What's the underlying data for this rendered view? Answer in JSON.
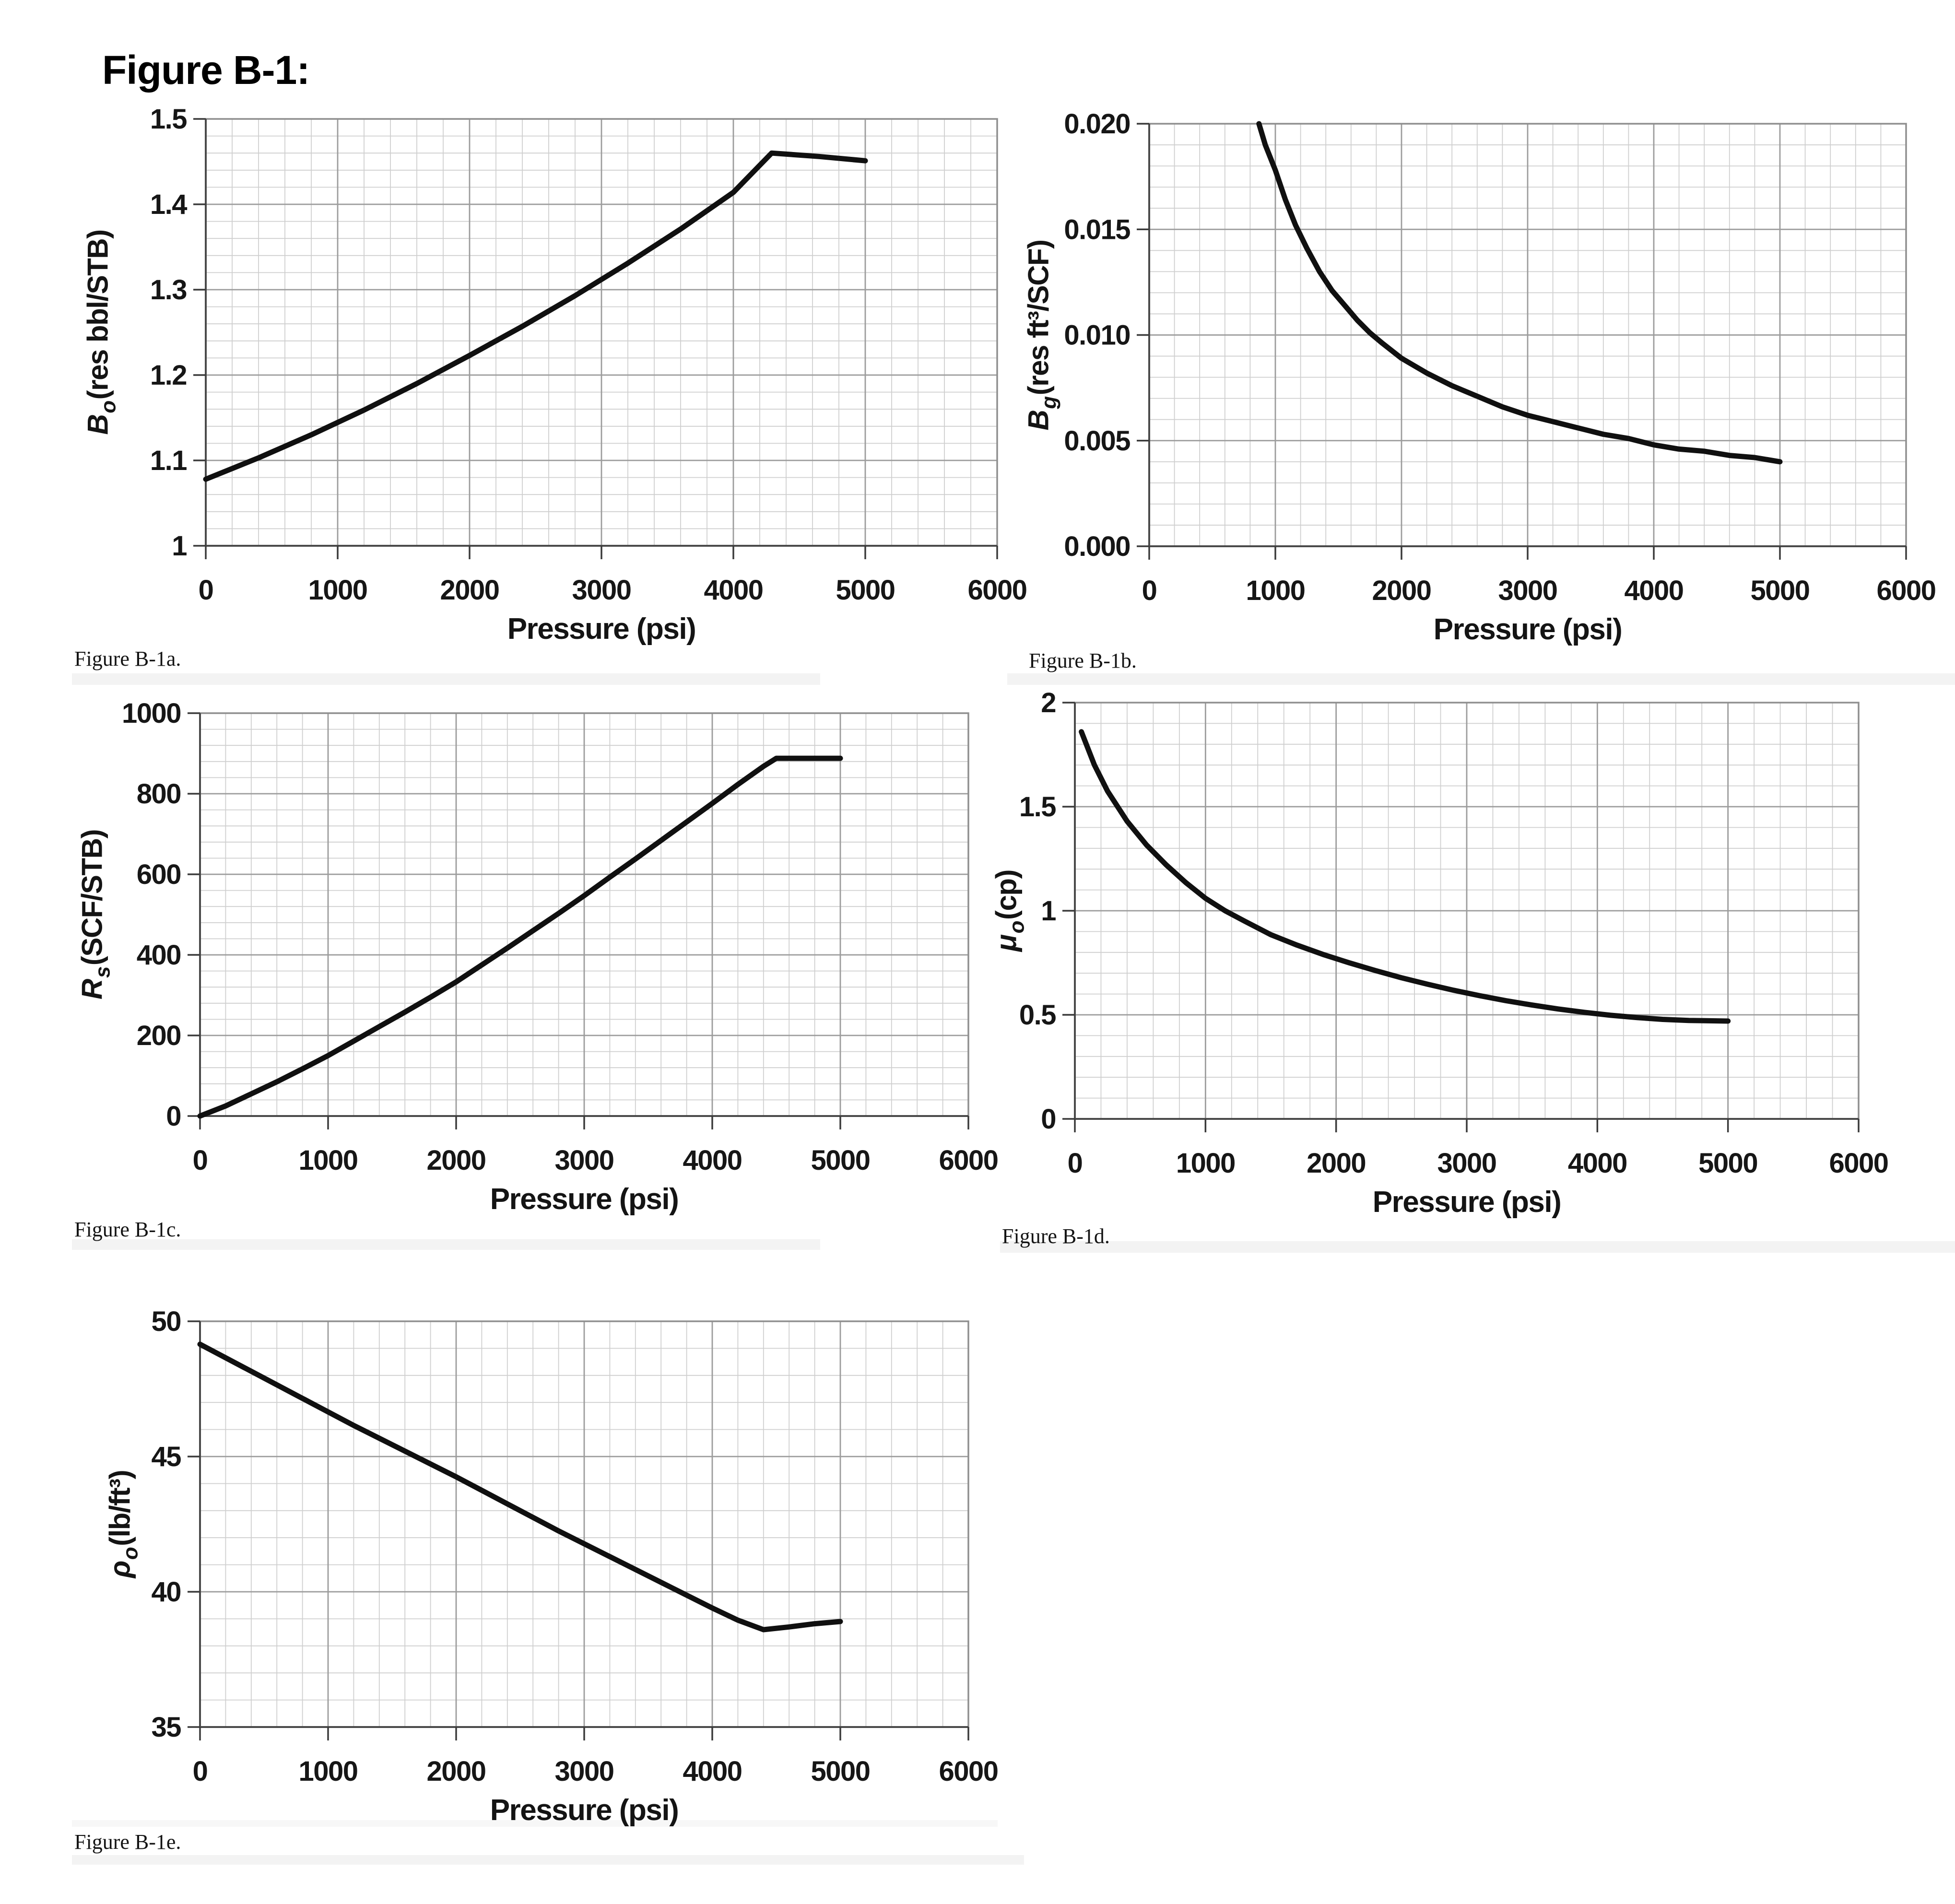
{
  "title": "Figure B-1:",
  "colors": {
    "curve": "#101010",
    "grid_minor": "#cfcfcf",
    "grid_major": "#9c9c9c",
    "plot_border": "#8f8f8f",
    "axis": "#4a4a4a",
    "tick": "#3a3a3a"
  },
  "chart_data": [
    {
      "id": "B-1a",
      "type": "line",
      "caption": "Figure B-1a.",
      "xlabel": "Pressure (psi)",
      "ylabel": {
        "sym": "B",
        "sub": "o",
        "rest": "(res bbl/STB)"
      },
      "xlim": [
        0,
        6000
      ],
      "ylim": [
        1,
        1.5
      ],
      "x_minor": 200,
      "y_minor": 0.02,
      "grid": true,
      "legend": "none",
      "xticks": [
        {
          "v": 0,
          "t": "0"
        },
        {
          "v": 1000,
          "t": "1000"
        },
        {
          "v": 2000,
          "t": "2000"
        },
        {
          "v": 3000,
          "t": "3000"
        },
        {
          "v": 4000,
          "t": "4000"
        },
        {
          "v": 5000,
          "t": "5000"
        },
        {
          "v": 6000,
          "t": "6000"
        }
      ],
      "yticks": [
        {
          "v": 1,
          "t": "1"
        },
        {
          "v": 1.1,
          "t": "1.1"
        },
        {
          "v": 1.2,
          "t": "1.2"
        },
        {
          "v": 1.3,
          "t": "1.3"
        },
        {
          "v": 1.4,
          "t": "1.4"
        },
        {
          "v": 1.5,
          "t": "1.5"
        }
      ],
      "series": [
        {
          "name": "Bo",
          "points": [
            [
              0,
              1.078
            ],
            [
              400,
              1.103
            ],
            [
              800,
              1.13
            ],
            [
              1200,
              1.159
            ],
            [
              1600,
              1.19
            ],
            [
              2000,
              1.223
            ],
            [
              2400,
              1.257
            ],
            [
              2800,
              1.293
            ],
            [
              3200,
              1.331
            ],
            [
              3600,
              1.371
            ],
            [
              4000,
              1.414
            ],
            [
              4290,
              1.46
            ],
            [
              4650,
              1.456
            ],
            [
              5000,
              1.451
            ]
          ]
        }
      ]
    },
    {
      "id": "B-1b",
      "type": "line",
      "caption": "Figure B-1b.",
      "xlabel": "Pressure (psi)",
      "ylabel": {
        "sym": "B",
        "sub": "g",
        "rest": "(res ft³/SCF)"
      },
      "xlim": [
        0,
        6000
      ],
      "ylim": [
        0,
        0.02
      ],
      "x_minor": 200,
      "y_minor": 0.001,
      "grid": true,
      "legend": "none",
      "xticks": [
        {
          "v": 0,
          "t": "0"
        },
        {
          "v": 1000,
          "t": "1000"
        },
        {
          "v": 2000,
          "t": "2000"
        },
        {
          "v": 3000,
          "t": "3000"
        },
        {
          "v": 4000,
          "t": "4000"
        },
        {
          "v": 5000,
          "t": "5000"
        },
        {
          "v": 6000,
          "t": "6000"
        }
      ],
      "yticks": [
        {
          "v": 0,
          "t": "0.000"
        },
        {
          "v": 0.005,
          "t": "0.005"
        },
        {
          "v": 0.01,
          "t": "0.010"
        },
        {
          "v": 0.015,
          "t": "0.015"
        },
        {
          "v": 0.02,
          "t": "0.020"
        }
      ],
      "series": [
        {
          "name": "Bg",
          "points": [
            [
              870,
              0.02
            ],
            [
              920,
              0.019
            ],
            [
              1000,
              0.0178
            ],
            [
              1080,
              0.0164
            ],
            [
              1160,
              0.0152
            ],
            [
              1250,
              0.0141
            ],
            [
              1350,
              0.013
            ],
            [
              1450,
              0.0121
            ],
            [
              1550,
              0.0114
            ],
            [
              1650,
              0.0107
            ],
            [
              1750,
              0.0101
            ],
            [
              1850,
              0.0096
            ],
            [
              2000,
              0.0089
            ],
            [
              2200,
              0.0082
            ],
            [
              2400,
              0.0076
            ],
            [
              2600,
              0.0071
            ],
            [
              2800,
              0.0066
            ],
            [
              3000,
              0.0062
            ],
            [
              3200,
              0.0059
            ],
            [
              3400,
              0.0056
            ],
            [
              3600,
              0.0053
            ],
            [
              3800,
              0.0051
            ],
            [
              4000,
              0.0048
            ],
            [
              4200,
              0.0046
            ],
            [
              4400,
              0.0045
            ],
            [
              4600,
              0.0043
            ],
            [
              4800,
              0.0042
            ],
            [
              5000,
              0.004
            ]
          ]
        }
      ]
    },
    {
      "id": "B-1c",
      "type": "line",
      "caption": "Figure B-1c.",
      "xlabel": "Pressure (psi)",
      "ylabel": {
        "sym": "R",
        "sub": "s",
        "rest": "(SCF/STB)"
      },
      "xlim": [
        0,
        6000
      ],
      "ylim": [
        0,
        1000
      ],
      "x_minor": 200,
      "y_minor": 40,
      "grid": true,
      "legend": "none",
      "xticks": [
        {
          "v": 0,
          "t": "0"
        },
        {
          "v": 1000,
          "t": "1000"
        },
        {
          "v": 2000,
          "t": "2000"
        },
        {
          "v": 3000,
          "t": "3000"
        },
        {
          "v": 4000,
          "t": "4000"
        },
        {
          "v": 5000,
          "t": "5000"
        },
        {
          "v": 6000,
          "t": "6000"
        }
      ],
      "yticks": [
        {
          "v": 0,
          "t": "0"
        },
        {
          "v": 200,
          "t": "200"
        },
        {
          "v": 400,
          "t": "400"
        },
        {
          "v": 600,
          "t": "600"
        },
        {
          "v": 800,
          "t": "800"
        },
        {
          "v": 1000,
          "t": "1000"
        }
      ],
      "series": [
        {
          "name": "Rs",
          "points": [
            [
              0,
              0
            ],
            [
              200,
              25
            ],
            [
              400,
              55
            ],
            [
              600,
              85
            ],
            [
              800,
              117
            ],
            [
              1000,
              150
            ],
            [
              1200,
              186
            ],
            [
              1400,
              222
            ],
            [
              1600,
              258
            ],
            [
              1800,
              295
            ],
            [
              2000,
              333
            ],
            [
              2200,
              375
            ],
            [
              2400,
              417
            ],
            [
              2600,
              460
            ],
            [
              2800,
              503
            ],
            [
              3000,
              547
            ],
            [
              3200,
              593
            ],
            [
              3400,
              638
            ],
            [
              3600,
              684
            ],
            [
              3800,
              730
            ],
            [
              4000,
              776
            ],
            [
              4200,
              823
            ],
            [
              4400,
              868
            ],
            [
              4500,
              888
            ],
            [
              5000,
              888
            ]
          ]
        }
      ]
    },
    {
      "id": "B-1d",
      "type": "line",
      "caption": "Figure B-1d.",
      "xlabel": "Pressure (psi)",
      "ylabel": {
        "sym": "μ",
        "sub": "o",
        "rest": "(cp)"
      },
      "xlim": [
        0,
        6000
      ],
      "ylim": [
        0,
        2
      ],
      "x_minor": 200,
      "y_minor": 0.1,
      "grid": true,
      "legend": "none",
      "xticks": [
        {
          "v": 0,
          "t": "0"
        },
        {
          "v": 1000,
          "t": "1000"
        },
        {
          "v": 2000,
          "t": "2000"
        },
        {
          "v": 3000,
          "t": "3000"
        },
        {
          "v": 4000,
          "t": "4000"
        },
        {
          "v": 5000,
          "t": "5000"
        },
        {
          "v": 6000,
          "t": "6000"
        }
      ],
      "yticks": [
        {
          "v": 0,
          "t": "0"
        },
        {
          "v": 0.5,
          "t": "0.5"
        },
        {
          "v": 1,
          "t": "1"
        },
        {
          "v": 1.5,
          "t": "1.5"
        },
        {
          "v": 2,
          "t": "2"
        }
      ],
      "series": [
        {
          "name": "muo",
          "points": [
            [
              50,
              1.86
            ],
            [
              150,
              1.7
            ],
            [
              250,
              1.575
            ],
            [
              400,
              1.43
            ],
            [
              550,
              1.315
            ],
            [
              700,
              1.22
            ],
            [
              850,
              1.135
            ],
            [
              1000,
              1.06
            ],
            [
              1150,
              1.0
            ],
            [
              1300,
              0.95
            ],
            [
              1500,
              0.885
            ],
            [
              1700,
              0.835
            ],
            [
              1900,
              0.79
            ],
            [
              2100,
              0.75
            ],
            [
              2300,
              0.713
            ],
            [
              2500,
              0.678
            ],
            [
              2700,
              0.647
            ],
            [
              2900,
              0.618
            ],
            [
              3100,
              0.592
            ],
            [
              3300,
              0.568
            ],
            [
              3500,
              0.547
            ],
            [
              3700,
              0.528
            ],
            [
              3900,
              0.512
            ],
            [
              4100,
              0.498
            ],
            [
              4300,
              0.487
            ],
            [
              4500,
              0.478
            ],
            [
              4700,
              0.473
            ],
            [
              5000,
              0.47
            ]
          ]
        }
      ]
    },
    {
      "id": "B-1e",
      "type": "line",
      "caption": "Figure B-1e.",
      "xlabel": "Pressure (psi)",
      "ylabel": {
        "sym": "ρ",
        "sub": "o",
        "rest": "(lb/ft³)"
      },
      "xlim": [
        0,
        6000
      ],
      "ylim": [
        35,
        50
      ],
      "x_minor": 200,
      "y_minor": 1,
      "grid": true,
      "legend": "none",
      "xticks": [
        {
          "v": 0,
          "t": "0"
        },
        {
          "v": 1000,
          "t": "1000"
        },
        {
          "v": 2000,
          "t": "2000"
        },
        {
          "v": 3000,
          "t": "3000"
        },
        {
          "v": 4000,
          "t": "4000"
        },
        {
          "v": 5000,
          "t": "5000"
        },
        {
          "v": 6000,
          "t": "6000"
        }
      ],
      "yticks": [
        {
          "v": 35,
          "t": "35"
        },
        {
          "v": 40,
          "t": "40"
        },
        {
          "v": 45,
          "t": "45"
        },
        {
          "v": 50,
          "t": "50"
        }
      ],
      "series": [
        {
          "name": "rhoo",
          "points": [
            [
              0,
              49.15
            ],
            [
              400,
              48.15
            ],
            [
              800,
              47.15
            ],
            [
              1200,
              46.15
            ],
            [
              1600,
              45.2
            ],
            [
              2000,
              44.25
            ],
            [
              2400,
              43.25
            ],
            [
              2800,
              42.25
            ],
            [
              3200,
              41.3
            ],
            [
              3600,
              40.35
            ],
            [
              4000,
              39.4
            ],
            [
              4200,
              38.95
            ],
            [
              4400,
              38.6
            ],
            [
              4600,
              38.7
            ],
            [
              4800,
              38.82
            ],
            [
              5000,
              38.9
            ]
          ]
        }
      ]
    }
  ]
}
